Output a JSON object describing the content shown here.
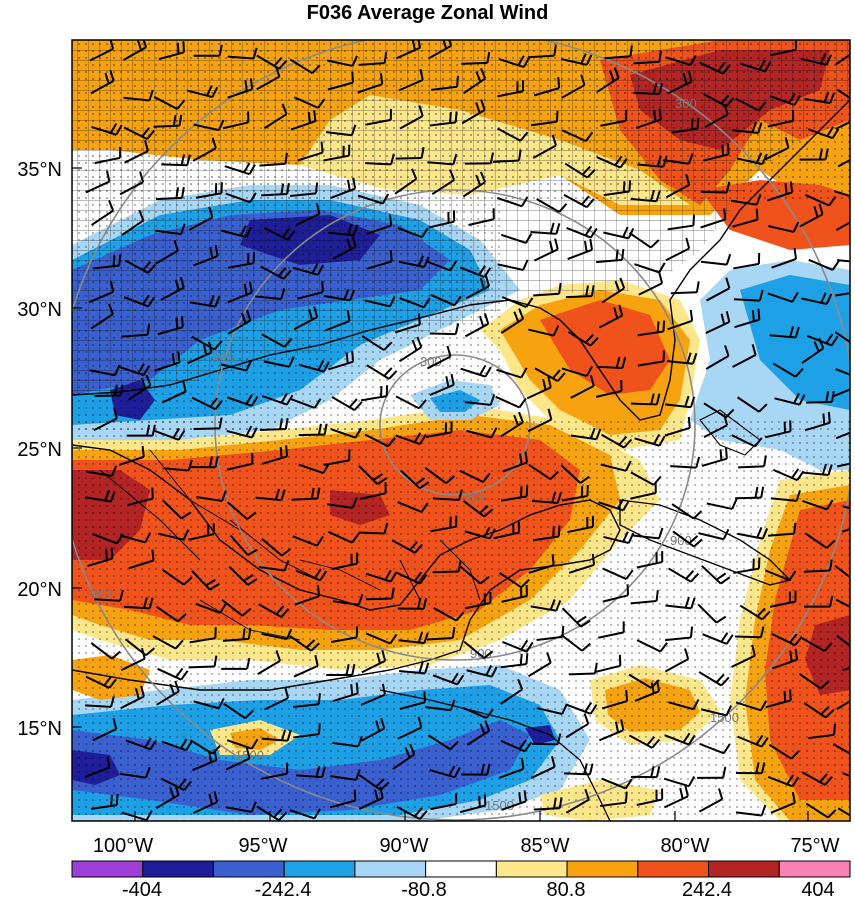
{
  "title": "F036 Average Zonal Wind",
  "lat_labels": [
    "35°N",
    "30°N",
    "25°N",
    "20°N",
    "15°N"
  ],
  "lon_labels": [
    "100°W",
    "95°W",
    "90°W",
    "85°W",
    "80°W",
    "75°W"
  ],
  "colorbar": {
    "labels": [
      "-404",
      "-242.4",
      "-80.8",
      "80.8",
      "242.4",
      "404"
    ],
    "colors": [
      "#9f3fd8",
      "#1e1e9a",
      "#3a5fcf",
      "#1ea0e6",
      "#a8d6f5",
      "#ffffff",
      "#fde78a",
      "#f7a30f",
      "#f0521b",
      "#b32424",
      "#f782b3"
    ]
  },
  "contour_labels": [
    "300",
    "300",
    "300",
    "900",
    "900",
    "900",
    "900",
    "1500",
    "1500",
    "1500"
  ],
  "palette": {
    "deep_red": "#b32424",
    "red": "#f0521b",
    "orange": "#f7a30f",
    "yellow": "#fde78a",
    "white": "#ffffff",
    "light_blue": "#a8d6f5",
    "cyan": "#1ea0e6",
    "blue": "#3a5fcf",
    "navy": "#1e1e9a"
  }
}
